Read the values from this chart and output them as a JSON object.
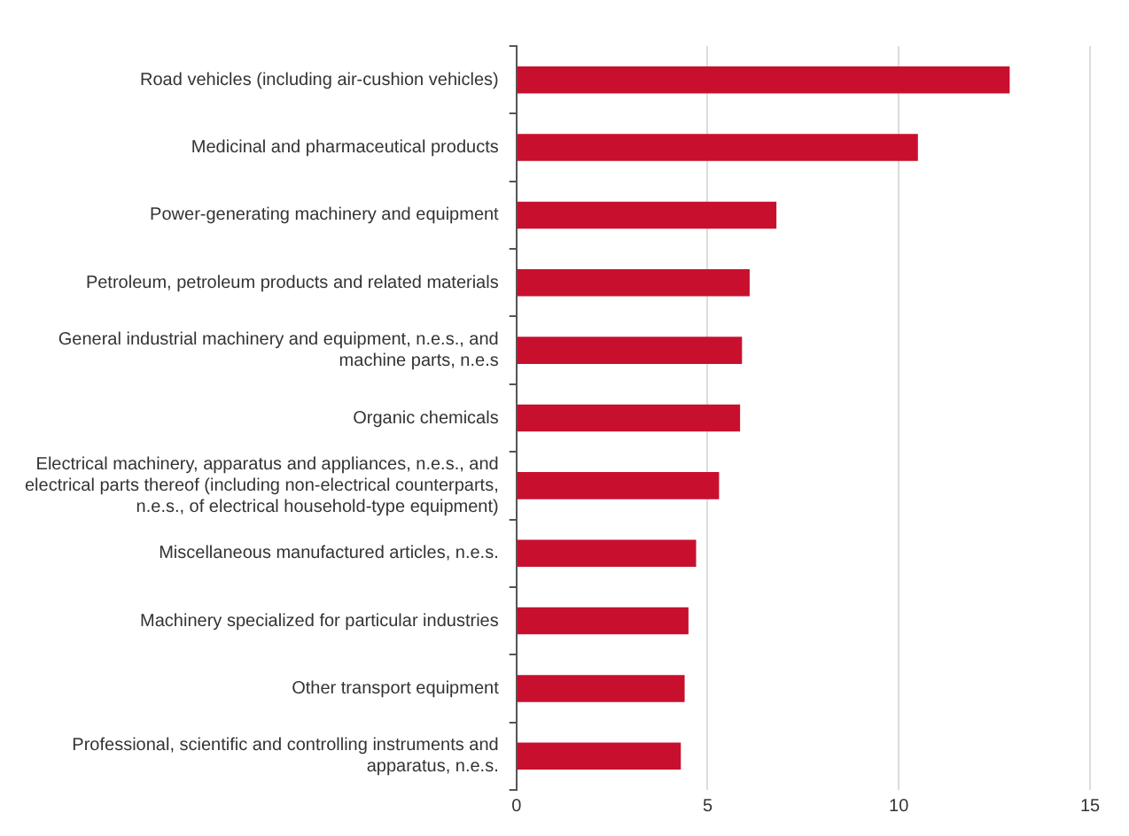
{
  "chart_data": {
    "type": "bar",
    "orientation": "horizontal",
    "categories": [
      "Road vehicles (including air-cushion vehicles)",
      "Medicinal and pharmaceutical products",
      "Power-generating machinery and equipment",
      "Petroleum, petroleum products and related materials",
      "General industrial machinery and equipment, n.e.s., and machine parts, n.e.s",
      "Organic chemicals",
      "Electrical machinery, apparatus and appliances, n.e.s., and electrical parts thereof (including non-electrical counterparts, n.e.s., of electrical household-type equipment)",
      "Miscellaneous manufactured articles, n.e.s.",
      "Machinery specialized for particular industries",
      "Other transport equipment",
      "Professional, scientific and controlling instruments and apparatus, n.e.s."
    ],
    "values": [
      12.9,
      10.5,
      6.8,
      6.1,
      5.9,
      5.85,
      5.3,
      4.7,
      4.5,
      4.4,
      4.3
    ],
    "color": "#c8102e",
    "xlim": [
      0,
      15
    ],
    "xticks": [
      0,
      5,
      10,
      15
    ],
    "grid": "x",
    "legend": false
  }
}
